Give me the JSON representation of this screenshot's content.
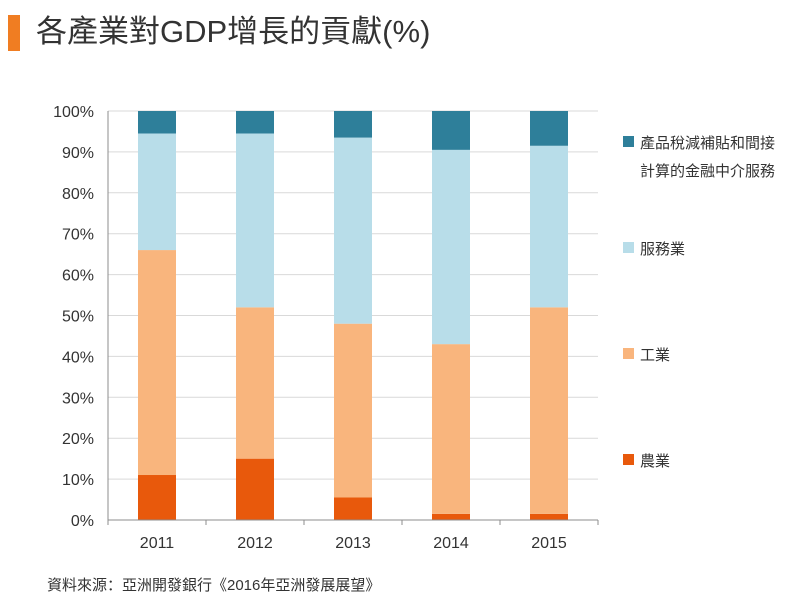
{
  "title": "各產業對GDP增長的貢獻(%)",
  "source": "資料來源：亞洲開發銀行《2016年亞洲發展展望》",
  "colors": {
    "title_accent": "#f07d22",
    "grid": "#d9d9d9",
    "axis": "#8c8c8c"
  },
  "chart_data": {
    "type": "bar",
    "stacked": true,
    "categories": [
      "2011",
      "2012",
      "2013",
      "2014",
      "2015"
    ],
    "ylim": [
      0,
      100
    ],
    "yticks": [
      "0%",
      "10%",
      "20%",
      "30%",
      "40%",
      "50%",
      "60%",
      "70%",
      "80%",
      "90%",
      "100%"
    ],
    "grid": true,
    "legend_position": "right",
    "series": [
      {
        "name": "農業",
        "color": "#e8590c",
        "values": [
          11,
          15,
          5.5,
          1.5,
          1.5
        ]
      },
      {
        "name": "工業",
        "color": "#f9b57d",
        "values": [
          55,
          37,
          42.5,
          41.5,
          50.5
        ]
      },
      {
        "name": "服務業",
        "color": "#b8dde9",
        "values": [
          28.5,
          42.5,
          45.5,
          47.5,
          39.5
        ]
      },
      {
        "name": "產品稅減補貼和間接計算的金融中介服務",
        "color": "#2e7f9a",
        "values": [
          5.5,
          5.5,
          6.5,
          9.5,
          8.5
        ]
      }
    ]
  }
}
